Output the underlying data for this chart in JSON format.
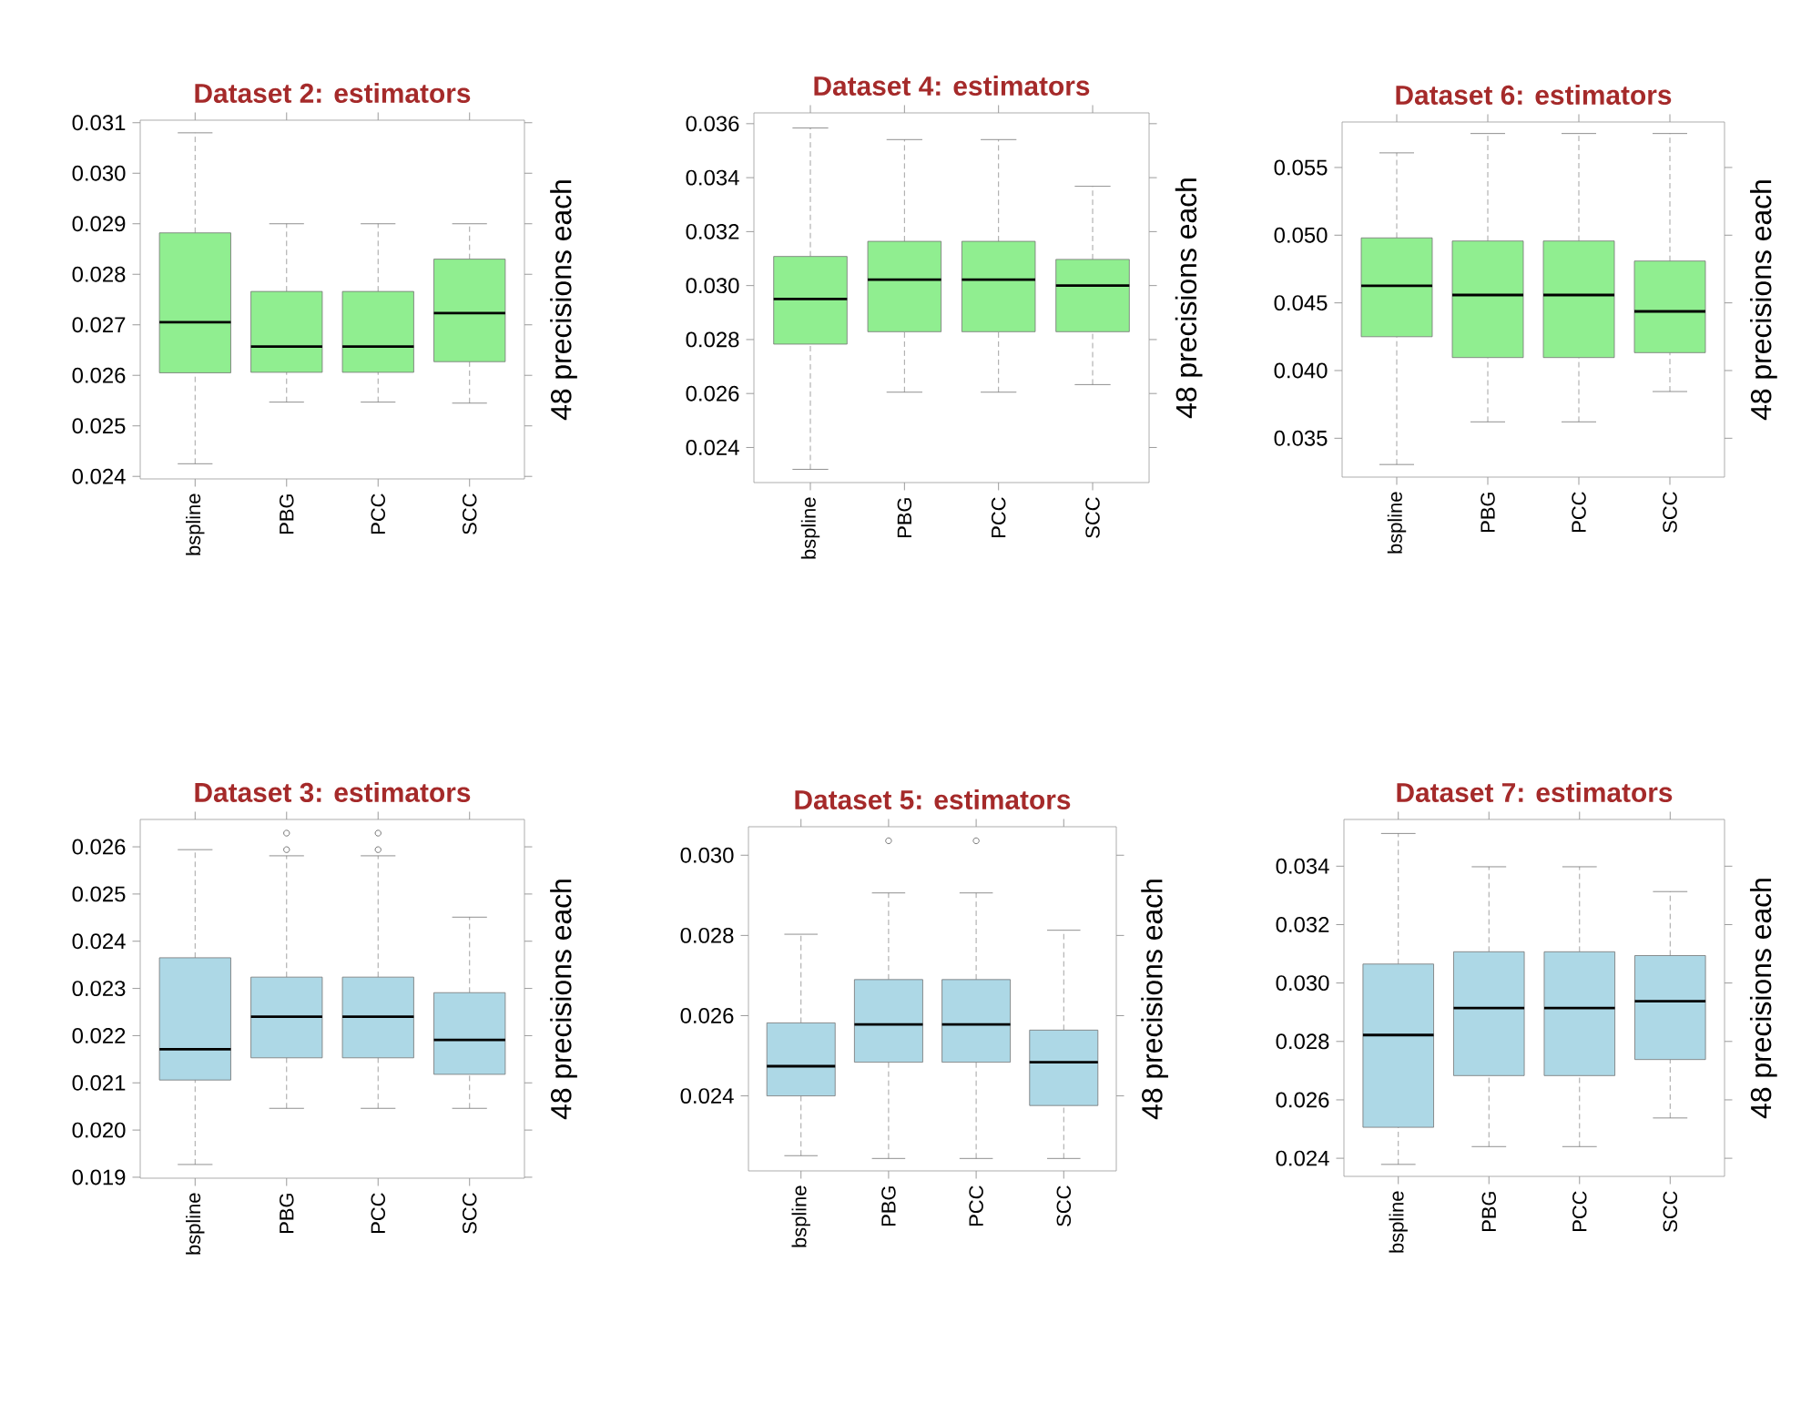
{
  "chart_data": [
    {
      "type": "box",
      "title": "Dataset 2: estimators",
      "ylabel": "48 precisions each",
      "categories": [
        "bspline",
        "PBG",
        "PCC",
        "SCC"
      ],
      "ylim": [
        0.02395,
        0.03105
      ],
      "yticks": [
        {
          "value": 0.024,
          "label": "0.024"
        },
        {
          "value": 0.025,
          "label": "0.025"
        },
        {
          "value": 0.026,
          "label": "0.026"
        },
        {
          "value": 0.027,
          "label": "0.027"
        },
        {
          "value": 0.028,
          "label": "0.028"
        },
        {
          "value": 0.029,
          "label": "0.029"
        },
        {
          "value": 0.03,
          "label": "0.030"
        },
        {
          "value": 0.031,
          "label": "0.031"
        }
      ],
      "series": [
        {
          "color": "#90ee90",
          "boxes": [
            {
              "low": 0.02425,
              "q1": 0.02605,
              "median": 0.02705,
              "q3": 0.02882,
              "high": 0.0308
            },
            {
              "low": 0.02547,
              "q1": 0.02606,
              "median": 0.02657,
              "q3": 0.02766,
              "high": 0.029
            },
            {
              "low": 0.02547,
              "q1": 0.02606,
              "median": 0.02657,
              "q3": 0.02766,
              "high": 0.029
            },
            {
              "low": 0.02545,
              "q1": 0.02627,
              "median": 0.02723,
              "q3": 0.0283,
              "high": 0.029
            }
          ]
        }
      ]
    },
    {
      "type": "box",
      "title": "Dataset 4: estimators",
      "ylabel": "48 precisions each",
      "categories": [
        "bspline",
        "PBG",
        "PCC",
        "SCC"
      ],
      "ylim": [
        0.0227,
        0.0364
      ],
      "yticks": [
        {
          "value": 0.024,
          "label": "0.024"
        },
        {
          "value": 0.026,
          "label": "0.026"
        },
        {
          "value": 0.028,
          "label": "0.028"
        },
        {
          "value": 0.03,
          "label": "0.030"
        },
        {
          "value": 0.032,
          "label": "0.032"
        },
        {
          "value": 0.034,
          "label": "0.034"
        },
        {
          "value": 0.036,
          "label": "0.036"
        }
      ],
      "series": [
        {
          "color": "#90ee90",
          "boxes": [
            {
              "low": 0.02319,
              "q1": 0.02783,
              "median": 0.0295,
              "q3": 0.03108,
              "high": 0.03584
            },
            {
              "low": 0.02605,
              "q1": 0.02829,
              "median": 0.03022,
              "q3": 0.03164,
              "high": 0.03541
            },
            {
              "low": 0.02605,
              "q1": 0.02829,
              "median": 0.03022,
              "q3": 0.03164,
              "high": 0.03541
            },
            {
              "low": 0.02633,
              "q1": 0.02829,
              "median": 0.03,
              "q3": 0.03097,
              "high": 0.03368
            }
          ]
        }
      ]
    },
    {
      "type": "box",
      "title": "Dataset 6: estimators",
      "ylabel": "48 precisions each",
      "categories": [
        "bspline",
        "PBG",
        "PCC",
        "SCC"
      ],
      "ylim": [
        0.03213,
        0.05836
      ],
      "yticks": [
        {
          "value": 0.035,
          "label": "0.035"
        },
        {
          "value": 0.04,
          "label": "0.040"
        },
        {
          "value": 0.045,
          "label": "0.045"
        },
        {
          "value": 0.05,
          "label": "0.050"
        },
        {
          "value": 0.055,
          "label": "0.055"
        }
      ],
      "series": [
        {
          "color": "#90ee90",
          "boxes": [
            {
              "low": 0.03306,
              "q1": 0.0425,
              "median": 0.04626,
              "q3": 0.0498,
              "high": 0.05608
            },
            {
              "low": 0.03621,
              "q1": 0.04096,
              "median": 0.04558,
              "q3": 0.04957,
              "high": 0.05751
            },
            {
              "low": 0.03621,
              "q1": 0.04096,
              "median": 0.04558,
              "q3": 0.04957,
              "high": 0.05751
            },
            {
              "low": 0.03845,
              "q1": 0.04132,
              "median": 0.04437,
              "q3": 0.04809,
              "high": 0.05751
            }
          ]
        }
      ]
    },
    {
      "type": "box",
      "title": "Dataset 3: estimators",
      "ylabel": "48 precisions each",
      "categories": [
        "bspline",
        "PBG",
        "PCC",
        "SCC"
      ],
      "ylim": [
        0.01898,
        0.02658
      ],
      "yticks": [
        {
          "value": 0.019,
          "label": "0.019"
        },
        {
          "value": 0.02,
          "label": "0.020"
        },
        {
          "value": 0.021,
          "label": "0.021"
        },
        {
          "value": 0.022,
          "label": "0.022"
        },
        {
          "value": 0.023,
          "label": "0.023"
        },
        {
          "value": 0.024,
          "label": "0.024"
        },
        {
          "value": 0.025,
          "label": "0.025"
        },
        {
          "value": 0.026,
          "label": "0.026"
        }
      ],
      "series": [
        {
          "color": "#add8e6",
          "boxes": [
            {
              "low": 0.01927,
              "q1": 0.02106,
              "median": 0.02171,
              "q3": 0.02365,
              "high": 0.02594
            },
            {
              "low": 0.02046,
              "q1": 0.02153,
              "median": 0.0224,
              "q3": 0.02324,
              "high": 0.02581,
              "outliers": [
                0.02594,
                0.02629
              ]
            },
            {
              "low": 0.02046,
              "q1": 0.02153,
              "median": 0.0224,
              "q3": 0.02324,
              "high": 0.02581,
              "outliers": [
                0.02594,
                0.02629
              ]
            },
            {
              "low": 0.02046,
              "q1": 0.02118,
              "median": 0.02191,
              "q3": 0.02291,
              "high": 0.02451
            }
          ]
        }
      ]
    },
    {
      "type": "box",
      "title": "Dataset 5: estimators",
      "ylabel": "48 precisions each",
      "categories": [
        "bspline",
        "PBG",
        "PCC",
        "SCC"
      ],
      "ylim": [
        0.02213,
        0.03071
      ],
      "yticks": [
        {
          "value": 0.024,
          "label": "0.024"
        },
        {
          "value": 0.026,
          "label": "0.026"
        },
        {
          "value": 0.028,
          "label": "0.028"
        },
        {
          "value": 0.03,
          "label": "0.030"
        }
      ],
      "series": [
        {
          "color": "#add8e6",
          "boxes": [
            {
              "low": 0.02251,
              "q1": 0.024,
              "median": 0.02474,
              "q3": 0.02582,
              "high": 0.02803
            },
            {
              "low": 0.02244,
              "q1": 0.02484,
              "median": 0.02578,
              "q3": 0.0269,
              "high": 0.02906,
              "outliers": [
                0.03036
              ]
            },
            {
              "low": 0.02244,
              "q1": 0.02484,
              "median": 0.02578,
              "q3": 0.0269,
              "high": 0.02906,
              "outliers": [
                0.03036
              ]
            },
            {
              "low": 0.02244,
              "q1": 0.02376,
              "median": 0.02484,
              "q3": 0.02564,
              "high": 0.02813
            }
          ]
        }
      ]
    },
    {
      "type": "box",
      "title": "Dataset 7: estimators",
      "ylabel": "48 precisions each",
      "categories": [
        "bspline",
        "PBG",
        "PCC",
        "SCC"
      ],
      "ylim": [
        0.02338,
        0.0356
      ],
      "yticks": [
        {
          "value": 0.024,
          "label": "0.024"
        },
        {
          "value": 0.026,
          "label": "0.026"
        },
        {
          "value": 0.028,
          "label": "0.028"
        },
        {
          "value": 0.03,
          "label": "0.030"
        },
        {
          "value": 0.032,
          "label": "0.032"
        },
        {
          "value": 0.034,
          "label": "0.034"
        }
      ],
      "series": [
        {
          "color": "#add8e6",
          "boxes": [
            {
              "low": 0.02379,
              "q1": 0.02506,
              "median": 0.02822,
              "q3": 0.03065,
              "high": 0.03512
            },
            {
              "low": 0.0244,
              "q1": 0.02683,
              "median": 0.02914,
              "q3": 0.03107,
              "high": 0.03398
            },
            {
              "low": 0.0244,
              "q1": 0.02683,
              "median": 0.02914,
              "q3": 0.03107,
              "high": 0.03398
            },
            {
              "low": 0.02538,
              "q1": 0.02738,
              "median": 0.02938,
              "q3": 0.03094,
              "high": 0.03313
            }
          ]
        }
      ]
    }
  ]
}
